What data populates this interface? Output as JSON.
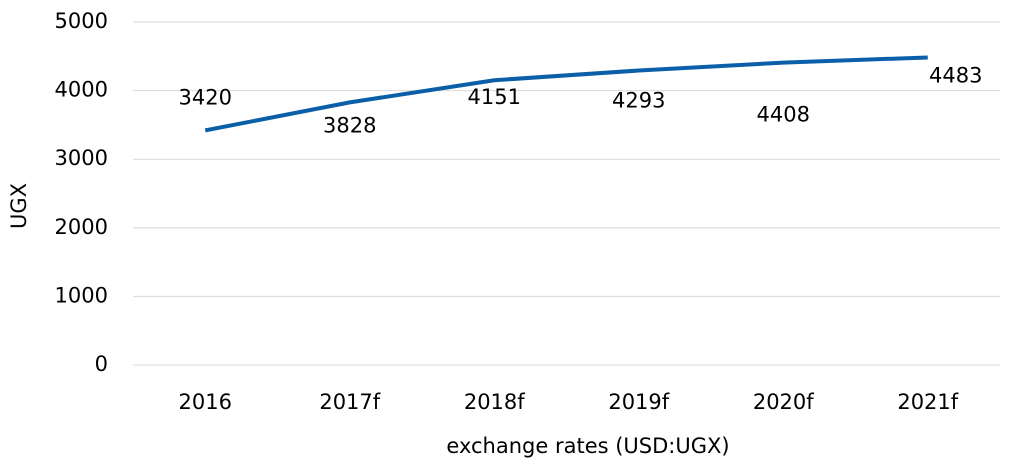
{
  "chart_data": {
    "type": "line",
    "x_label": "exchange rates (USD:UGX)",
    "y_label": "UGX",
    "categories": [
      "2016",
      "2017f",
      "2018f",
      "2019f",
      "2020f",
      "2021f"
    ],
    "series": [
      {
        "name": "exchange rates",
        "color": "#0b5fa8",
        "values": [
          3420,
          3828,
          4151,
          4293,
          4408,
          4483
        ]
      }
    ],
    "ylim": [
      0,
      5000
    ],
    "yticks": [
      0,
      1000,
      2000,
      3000,
      4000,
      5000
    ],
    "grid": true
  }
}
